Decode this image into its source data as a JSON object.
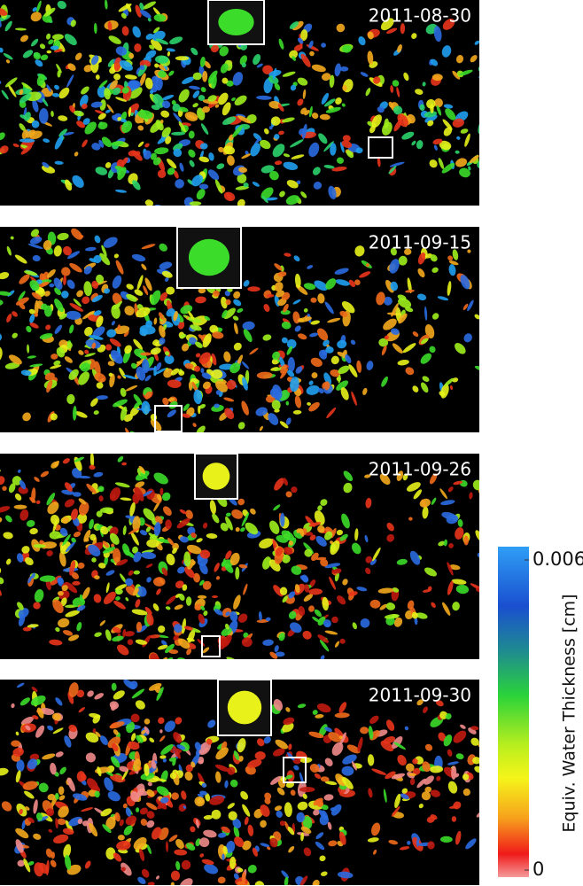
{
  "panels": [
    {
      "date": "2011-08-30"
    },
    {
      "date": "2011-09-15"
    },
    {
      "date": "2011-09-26"
    },
    {
      "date": "2011-09-30"
    }
  ],
  "colorbar": {
    "label": "Equiv. Water Thickness [cm]",
    "lim": [
      0,
      0.006
    ],
    "ticks": [
      0,
      0.006
    ]
  }
}
